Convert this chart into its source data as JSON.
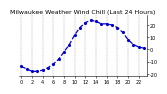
{
  "title": "Milwaukee Weather Wind Chill (Last 24 Hours)",
  "x_values": [
    0,
    1,
    2,
    3,
    4,
    5,
    6,
    7,
    8,
    9,
    10,
    11,
    12,
    13,
    14,
    15,
    16,
    17,
    18,
    19,
    20,
    21,
    22,
    23
  ],
  "y_values": [
    -14,
    -16,
    -18,
    -18,
    -17,
    -15,
    -12,
    -8,
    -2,
    4,
    12,
    18,
    22,
    24,
    23,
    21,
    21,
    20,
    18,
    14,
    8,
    4,
    2,
    1
  ],
  "line_color": "#0000cc",
  "marker": ".",
  "marker_size": 2.5,
  "line_style": "--",
  "line_width": 0.9,
  "ylim": [
    -22,
    28
  ],
  "xlim": [
    -0.5,
    23.5
  ],
  "yticks": [
    -20,
    -10,
    0,
    10,
    20
  ],
  "ytick_labels": [
    "-20",
    "-10",
    "0",
    "10",
    "20"
  ],
  "xtick_positions": [
    0,
    2,
    4,
    6,
    8,
    10,
    12,
    14,
    16,
    18,
    20,
    22
  ],
  "xtick_labels": [
    "0",
    "2",
    "4",
    "6",
    "8",
    "10",
    "12",
    "14",
    "16",
    "18",
    "20",
    "22"
  ],
  "vgrid_positions": [
    0,
    2,
    4,
    6,
    8,
    10,
    12,
    14,
    16,
    18,
    20,
    22
  ],
  "grid_color": "#999999",
  "bg_color": "#ffffff",
  "title_fontsize": 4.5,
  "tick_fontsize": 3.5
}
